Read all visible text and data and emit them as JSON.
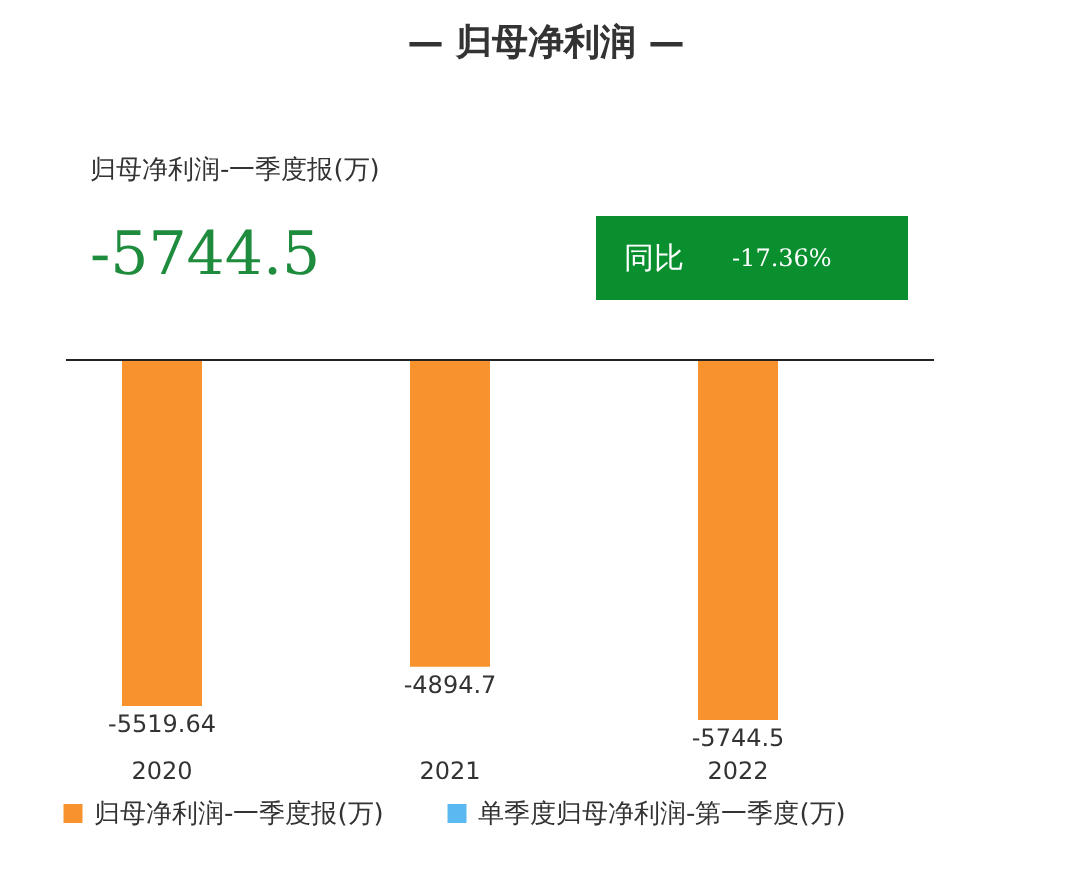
{
  "chart_data": {
    "type": "bar",
    "title": "— 归母净利润 —",
    "subtitle": "归母净利润-一季度报(万)",
    "categories": [
      "2020",
      "2021",
      "2022"
    ],
    "series": [
      {
        "name": "归母净利润-一季度报(万)",
        "color": "#f7922d",
        "values": [
          -5519.64,
          -4894.7,
          -5744.5
        ]
      },
      {
        "name": "单季度归母净利润-第一季度(万)",
        "color": "#5bb8f0",
        "values": [
          null,
          null,
          null
        ]
      }
    ],
    "data_labels": true,
    "legend": "bottom",
    "grid": false,
    "tick_labels": "x",
    "annotations": [
      "-5744.5",
      "同比",
      "-17.36%"
    ]
  }
}
